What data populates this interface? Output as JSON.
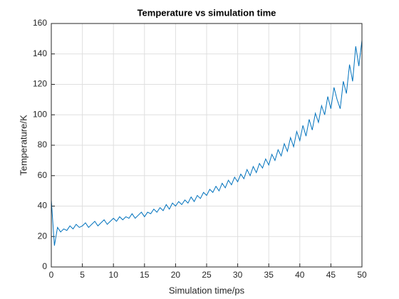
{
  "chart_data": {
    "type": "line",
    "title": "Temperature vs simulation time",
    "xlabel": "Simulation time/ps",
    "ylabel": "Temperature/K",
    "x": [
      0,
      0.5,
      1,
      1.5,
      2,
      2.5,
      3,
      3.5,
      4,
      4.5,
      5,
      5.5,
      6,
      6.5,
      7,
      7.5,
      8,
      8.5,
      9,
      9.5,
      10,
      10.5,
      11,
      11.5,
      12,
      12.5,
      13,
      13.5,
      14,
      14.5,
      15,
      15.5,
      16,
      16.5,
      17,
      17.5,
      18,
      18.5,
      19,
      19.5,
      20,
      20.5,
      21,
      21.5,
      22,
      22.5,
      23,
      23.5,
      24,
      24.5,
      25,
      25.5,
      26,
      26.5,
      27,
      27.5,
      28,
      28.5,
      29,
      29.5,
      30,
      30.5,
      31,
      31.5,
      32,
      32.5,
      33,
      33.5,
      34,
      34.5,
      35,
      35.5,
      36,
      36.5,
      37,
      37.5,
      38,
      38.5,
      39,
      39.5,
      40,
      40.5,
      41,
      41.5,
      42,
      42.5,
      43,
      43.5,
      44,
      44.5,
      45,
      45.5,
      46,
      46.5,
      47,
      47.5,
      48,
      48.5,
      49,
      49.5,
      50
    ],
    "series": [
      {
        "color": "#0072bd",
        "values": [
          44,
          14,
          26,
          23,
          25,
          24,
          27,
          25,
          28,
          26,
          27,
          29,
          26,
          28,
          30,
          27,
          29,
          31,
          28,
          30,
          32,
          30,
          33,
          31,
          33,
          32,
          35,
          32,
          34,
          36,
          33,
          36,
          35,
          38,
          36,
          39,
          37,
          41,
          38,
          42,
          40,
          43,
          41,
          44,
          42,
          46,
          43,
          47,
          45,
          49,
          47,
          51,
          49,
          53,
          50,
          55,
          52,
          57,
          54,
          59,
          56,
          61,
          58,
          64,
          60,
          66,
          62,
          68,
          65,
          71,
          67,
          74,
          70,
          77,
          73,
          81,
          76,
          85,
          79,
          89,
          83,
          93,
          86,
          97,
          90,
          101,
          95,
          106,
          100,
          112,
          104,
          118,
          110,
          104,
          122,
          114,
          133,
          122,
          145,
          132,
          149
        ]
      }
    ],
    "xlim": [
      0,
      50
    ],
    "xticks": [
      0,
      5,
      10,
      15,
      20,
      25,
      30,
      35,
      40,
      45,
      50
    ],
    "ylim": [
      0,
      160
    ],
    "yticks": [
      0,
      20,
      40,
      60,
      80,
      100,
      120,
      140,
      160
    ],
    "grid": true
  }
}
